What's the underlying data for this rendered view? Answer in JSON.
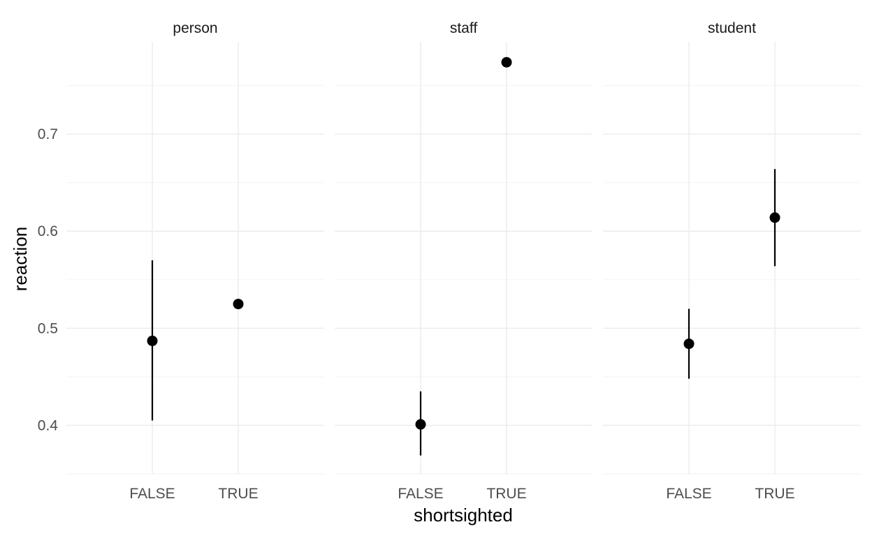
{
  "chart_data": {
    "type": "scatter",
    "subtype": "faceted point-range",
    "title": "",
    "xlabel": "shortsighted",
    "ylabel": "reaction",
    "categories": [
      "FALSE",
      "TRUE"
    ],
    "ylim": [
      0.35,
      0.795
    ],
    "y_ticks": [
      "0.4",
      "0.5",
      "0.6",
      "0.7"
    ],
    "grid": true,
    "point_color": "#000000",
    "facets": [
      {
        "name": "person",
        "points": [
          {
            "x": "FALSE",
            "y": 0.487,
            "ymin": 0.405,
            "ymax": 0.57
          },
          {
            "x": "TRUE",
            "y": 0.525,
            "ymin": 0.525,
            "ymax": 0.525
          }
        ]
      },
      {
        "name": "staff",
        "points": [
          {
            "x": "FALSE",
            "y": 0.401,
            "ymin": 0.369,
            "ymax": 0.435
          },
          {
            "x": "TRUE",
            "y": 0.774,
            "ymin": 0.774,
            "ymax": 0.774
          }
        ]
      },
      {
        "name": "student",
        "points": [
          {
            "x": "FALSE",
            "y": 0.484,
            "ymin": 0.448,
            "ymax": 0.52
          },
          {
            "x": "TRUE",
            "y": 0.614,
            "ymin": 0.564,
            "ymax": 0.664
          }
        ]
      }
    ]
  }
}
